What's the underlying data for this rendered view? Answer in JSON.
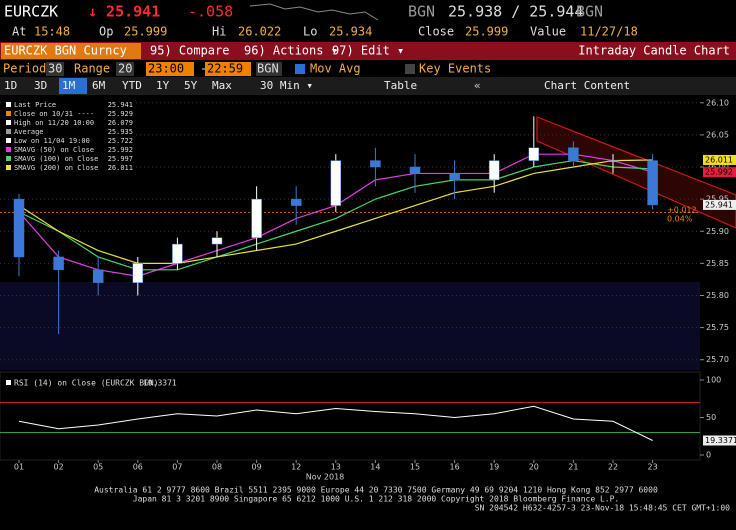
{
  "header": {
    "ticker": "EURCZK",
    "last": "↓ 25.941",
    "change": "-.058",
    "bid_currency": "BGN",
    "bid_ask": "25.938 / 25.944",
    "ask_currency": "BGN"
  },
  "quote": {
    "at_label": "At",
    "at": "15:48",
    "open_label": "Op",
    "open": "25.999",
    "high_label": "Hi",
    "high": "26.022",
    "low_label": "Lo",
    "low": "25.934",
    "close_label": "Close",
    "close": "25.999",
    "value_label": "Value",
    "value": "11/27/18"
  },
  "toolbar": {
    "security": "EURCZK BGN Curncy",
    "buttons": [
      "95) Compare",
      "96) Actions ▾",
      "97) Edit ▾"
    ],
    "title": "Intraday Candle Chart"
  },
  "settings": {
    "period_label": "Period",
    "period": "30",
    "range_label": "Range",
    "range": "20",
    "start": "23:00",
    "separator": "-",
    "end": "22:59",
    "currency": "BGN",
    "mov_avg": "Mov Avg",
    "key_events": "Key Events"
  },
  "ranges": {
    "items": [
      "1D",
      "3D",
      "1M",
      "6M",
      "YTD",
      "1Y",
      "5Y",
      "Max",
      "30 Min ▾"
    ],
    "selected": "1M",
    "table": "Table",
    "chart_content": "Chart Content"
  },
  "chart_data": [
    {
      "type": "candlestick",
      "xlabel": "Nov 2018",
      "categories": [
        "01",
        "02",
        "05",
        "06",
        "07",
        "08",
        "09",
        "12",
        "13",
        "14",
        "15",
        "16",
        "19",
        "20",
        "21",
        "22",
        "23"
      ],
      "open": [
        25.95,
        25.86,
        25.84,
        25.82,
        25.85,
        25.88,
        25.89,
        25.95,
        25.94,
        26.01,
        26.0,
        25.99,
        25.98,
        26.01,
        26.03,
        26.01,
        26.01
      ],
      "high": [
        25.958,
        25.87,
        25.86,
        25.86,
        25.89,
        25.9,
        25.97,
        25.97,
        26.02,
        26.03,
        26.02,
        26.01,
        26.02,
        26.079,
        26.04,
        26.02,
        26.02
      ],
      "low": [
        25.83,
        25.74,
        25.8,
        25.8,
        25.84,
        25.86,
        25.87,
        25.91,
        25.93,
        25.97,
        25.96,
        25.95,
        25.96,
        26.0,
        26.0,
        25.99,
        25.934
      ],
      "close": [
        25.86,
        25.84,
        25.82,
        25.85,
        25.88,
        25.89,
        25.95,
        25.94,
        26.01,
        26.0,
        25.99,
        25.98,
        26.01,
        26.03,
        26.01,
        26.01,
        25.941
      ],
      "up_color": "#ffffff",
      "down_color": "#3c78d8",
      "series": [
        {
          "name": "SMAVG (50) on Close",
          "color": "#e040e0",
          "tag_color": "#e0203a",
          "legend_value": 25.992,
          "values": [
            25.93,
            25.86,
            25.84,
            25.83,
            25.85,
            25.87,
            25.89,
            25.92,
            25.94,
            25.98,
            25.99,
            25.99,
            25.99,
            26.02,
            26.02,
            26.01,
            25.992
          ]
        },
        {
          "name": "SMAVG (100) on Close",
          "color": "#4cd26a",
          "tag_color": null,
          "legend_value": 25.997,
          "values": [
            25.93,
            25.9,
            25.86,
            25.84,
            25.84,
            25.86,
            25.88,
            25.9,
            25.92,
            25.95,
            25.97,
            25.98,
            25.98,
            26.0,
            26.01,
            26.0,
            25.997
          ]
        },
        {
          "name": "SMAVG (200) on Close",
          "color": "#e8e040",
          "tag_color": "#f0e020",
          "legend_value": 26.011,
          "values": [
            25.94,
            25.9,
            25.87,
            25.85,
            25.85,
            25.86,
            25.87,
            25.88,
            25.9,
            25.92,
            25.94,
            25.96,
            25.97,
            25.99,
            26.0,
            26.01,
            26.011
          ]
        }
      ],
      "legend": [
        {
          "label": "Last Price",
          "value": 25.941,
          "color": "#ffffff"
        },
        {
          "label": "Close on 10/31 ----",
          "value": 25.929,
          "color": "#f08000"
        },
        {
          "label": "High on 11/20 10:00",
          "value": 26.079,
          "color": "#ffffff"
        },
        {
          "label": "Average",
          "value": 25.935,
          "color": "#999999"
        },
        {
          "label": "Low on 11/04 19:00",
          "value": 25.722,
          "color": "#ffffff"
        }
      ],
      "annotations": [
        "+0.012",
        "0.04%"
      ],
      "ylim": [
        25.684,
        26.109
      ],
      "yticks": [
        {
          "value": 25.7,
          "label": "25.70"
        },
        25.75,
        {
          "value": 25.8,
          "label": "25.80"
        },
        25.85,
        {
          "value": 25.9,
          "label": "25.90"
        },
        25.95,
        {
          "value": 26.0,
          "label": "26.00"
        },
        26.05,
        {
          "value": 26.1,
          "label": "26.10"
        }
      ],
      "grid": true
    },
    {
      "type": "line",
      "title": "RSI (14) on Close (EURCZK BGN)",
      "legend_value": 19.3371,
      "series": [
        {
          "name": "RSI",
          "color": "#ffffff",
          "values": [
            45,
            35,
            40,
            48,
            55,
            52,
            60,
            55,
            62,
            58,
            55,
            50,
            55,
            65,
            48,
            45,
            19.3371
          ]
        }
      ],
      "overbought": 70,
      "oversold": 30,
      "ylim": [
        0,
        100
      ],
      "yticks": [
        0,
        50,
        100
      ]
    }
  ],
  "footer": [
    "Australia 61 2 9777 8600 Brazil 5511 2395 9000 Europe 44 20 7330 7500 Germany 49 69 9204 1210 Hong Kong 852 2977 6000",
    "Japan 81 3 3201 8900     Singapore 65 6212 1000     U.S. 1 212 318 2000     Copyright 2018 Bloomberg Finance L.P.",
    "SN 204542 H632-4257-3 23-Nov-18 15:48:45 CET  GMT+1:00"
  ]
}
